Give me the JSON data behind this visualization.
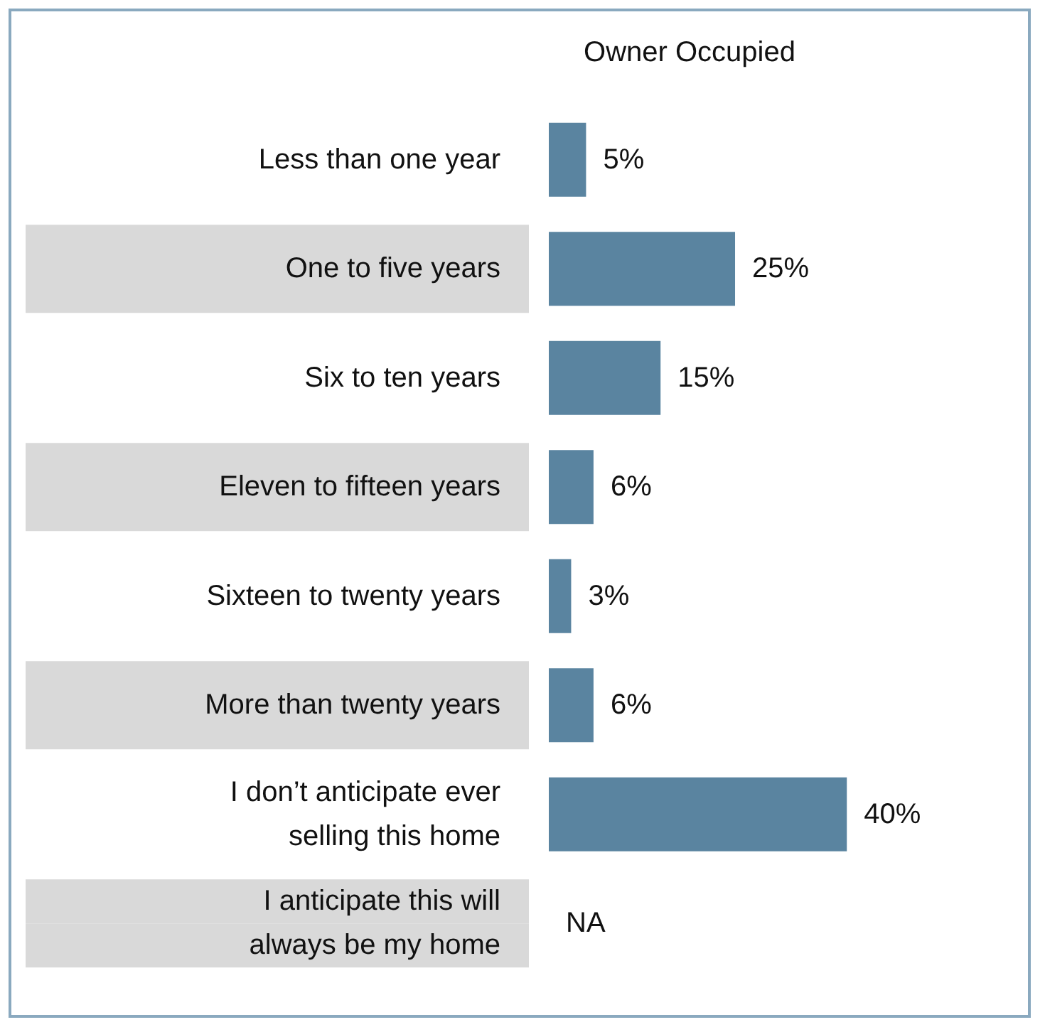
{
  "chart_data": {
    "type": "bar",
    "orientation": "horizontal",
    "title": "Owner Occupied",
    "categories": [
      "Less than one year",
      "One to five years",
      "Six to ten years",
      "Eleven to fifteen years",
      "Sixteen to twenty years",
      "More than twenty years",
      "I don’t anticipate ever selling this home",
      "I anticipate this will always be my home"
    ],
    "values": [
      5,
      25,
      15,
      6,
      3,
      6,
      40,
      null
    ],
    "value_labels": [
      "5%",
      "25%",
      "15%",
      "6%",
      "3%",
      "6%",
      "40%",
      "NA"
    ],
    "color": "#5a84a0"
  }
}
